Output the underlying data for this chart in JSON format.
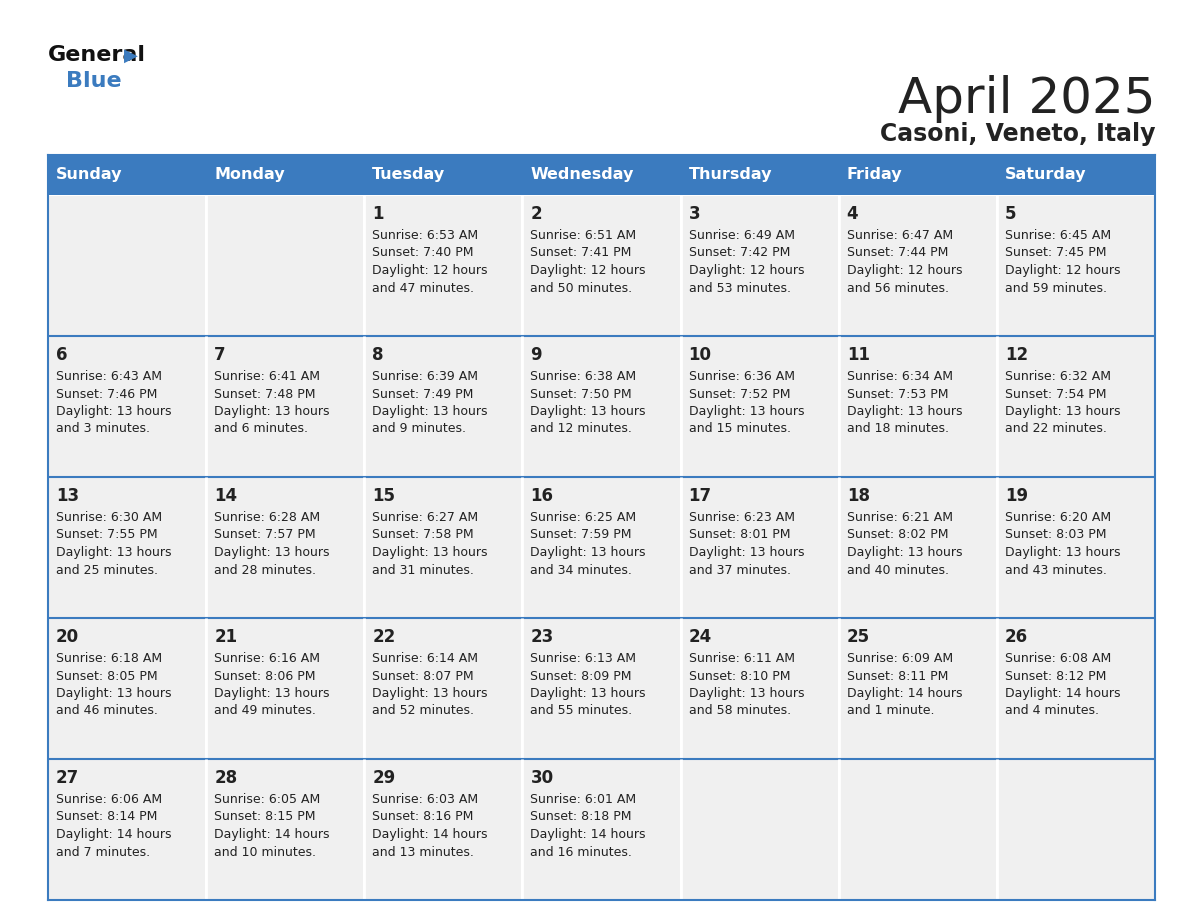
{
  "title": "April 2025",
  "subtitle": "Casoni, Veneto, Italy",
  "header_bg": "#3b7bbf",
  "header_text": "#ffffff",
  "cell_bg": "#f0f0f0",
  "border_color": "#3b7bbf",
  "text_color": "#222222",
  "logo_black": "#111111",
  "logo_blue": "#3b7bbf",
  "days_of_week": [
    "Sunday",
    "Monday",
    "Tuesday",
    "Wednesday",
    "Thursday",
    "Friday",
    "Saturday"
  ],
  "weeks": [
    [
      {
        "day": "",
        "info": ""
      },
      {
        "day": "",
        "info": ""
      },
      {
        "day": "1",
        "info": "Sunrise: 6:53 AM\nSunset: 7:40 PM\nDaylight: 12 hours\nand 47 minutes."
      },
      {
        "day": "2",
        "info": "Sunrise: 6:51 AM\nSunset: 7:41 PM\nDaylight: 12 hours\nand 50 minutes."
      },
      {
        "day": "3",
        "info": "Sunrise: 6:49 AM\nSunset: 7:42 PM\nDaylight: 12 hours\nand 53 minutes."
      },
      {
        "day": "4",
        "info": "Sunrise: 6:47 AM\nSunset: 7:44 PM\nDaylight: 12 hours\nand 56 minutes."
      },
      {
        "day": "5",
        "info": "Sunrise: 6:45 AM\nSunset: 7:45 PM\nDaylight: 12 hours\nand 59 minutes."
      }
    ],
    [
      {
        "day": "6",
        "info": "Sunrise: 6:43 AM\nSunset: 7:46 PM\nDaylight: 13 hours\nand 3 minutes."
      },
      {
        "day": "7",
        "info": "Sunrise: 6:41 AM\nSunset: 7:48 PM\nDaylight: 13 hours\nand 6 minutes."
      },
      {
        "day": "8",
        "info": "Sunrise: 6:39 AM\nSunset: 7:49 PM\nDaylight: 13 hours\nand 9 minutes."
      },
      {
        "day": "9",
        "info": "Sunrise: 6:38 AM\nSunset: 7:50 PM\nDaylight: 13 hours\nand 12 minutes."
      },
      {
        "day": "10",
        "info": "Sunrise: 6:36 AM\nSunset: 7:52 PM\nDaylight: 13 hours\nand 15 minutes."
      },
      {
        "day": "11",
        "info": "Sunrise: 6:34 AM\nSunset: 7:53 PM\nDaylight: 13 hours\nand 18 minutes."
      },
      {
        "day": "12",
        "info": "Sunrise: 6:32 AM\nSunset: 7:54 PM\nDaylight: 13 hours\nand 22 minutes."
      }
    ],
    [
      {
        "day": "13",
        "info": "Sunrise: 6:30 AM\nSunset: 7:55 PM\nDaylight: 13 hours\nand 25 minutes."
      },
      {
        "day": "14",
        "info": "Sunrise: 6:28 AM\nSunset: 7:57 PM\nDaylight: 13 hours\nand 28 minutes."
      },
      {
        "day": "15",
        "info": "Sunrise: 6:27 AM\nSunset: 7:58 PM\nDaylight: 13 hours\nand 31 minutes."
      },
      {
        "day": "16",
        "info": "Sunrise: 6:25 AM\nSunset: 7:59 PM\nDaylight: 13 hours\nand 34 minutes."
      },
      {
        "day": "17",
        "info": "Sunrise: 6:23 AM\nSunset: 8:01 PM\nDaylight: 13 hours\nand 37 minutes."
      },
      {
        "day": "18",
        "info": "Sunrise: 6:21 AM\nSunset: 8:02 PM\nDaylight: 13 hours\nand 40 minutes."
      },
      {
        "day": "19",
        "info": "Sunrise: 6:20 AM\nSunset: 8:03 PM\nDaylight: 13 hours\nand 43 minutes."
      }
    ],
    [
      {
        "day": "20",
        "info": "Sunrise: 6:18 AM\nSunset: 8:05 PM\nDaylight: 13 hours\nand 46 minutes."
      },
      {
        "day": "21",
        "info": "Sunrise: 6:16 AM\nSunset: 8:06 PM\nDaylight: 13 hours\nand 49 minutes."
      },
      {
        "day": "22",
        "info": "Sunrise: 6:14 AM\nSunset: 8:07 PM\nDaylight: 13 hours\nand 52 minutes."
      },
      {
        "day": "23",
        "info": "Sunrise: 6:13 AM\nSunset: 8:09 PM\nDaylight: 13 hours\nand 55 minutes."
      },
      {
        "day": "24",
        "info": "Sunrise: 6:11 AM\nSunset: 8:10 PM\nDaylight: 13 hours\nand 58 minutes."
      },
      {
        "day": "25",
        "info": "Sunrise: 6:09 AM\nSunset: 8:11 PM\nDaylight: 14 hours\nand 1 minute."
      },
      {
        "day": "26",
        "info": "Sunrise: 6:08 AM\nSunset: 8:12 PM\nDaylight: 14 hours\nand 4 minutes."
      }
    ],
    [
      {
        "day": "27",
        "info": "Sunrise: 6:06 AM\nSunset: 8:14 PM\nDaylight: 14 hours\nand 7 minutes."
      },
      {
        "day": "28",
        "info": "Sunrise: 6:05 AM\nSunset: 8:15 PM\nDaylight: 14 hours\nand 10 minutes."
      },
      {
        "day": "29",
        "info": "Sunrise: 6:03 AM\nSunset: 8:16 PM\nDaylight: 14 hours\nand 13 minutes."
      },
      {
        "day": "30",
        "info": "Sunrise: 6:01 AM\nSunset: 8:18 PM\nDaylight: 14 hours\nand 16 minutes."
      },
      {
        "day": "",
        "info": ""
      },
      {
        "day": "",
        "info": ""
      },
      {
        "day": "",
        "info": ""
      }
    ]
  ],
  "fig_width": 11.88,
  "fig_height": 9.18,
  "dpi": 100
}
